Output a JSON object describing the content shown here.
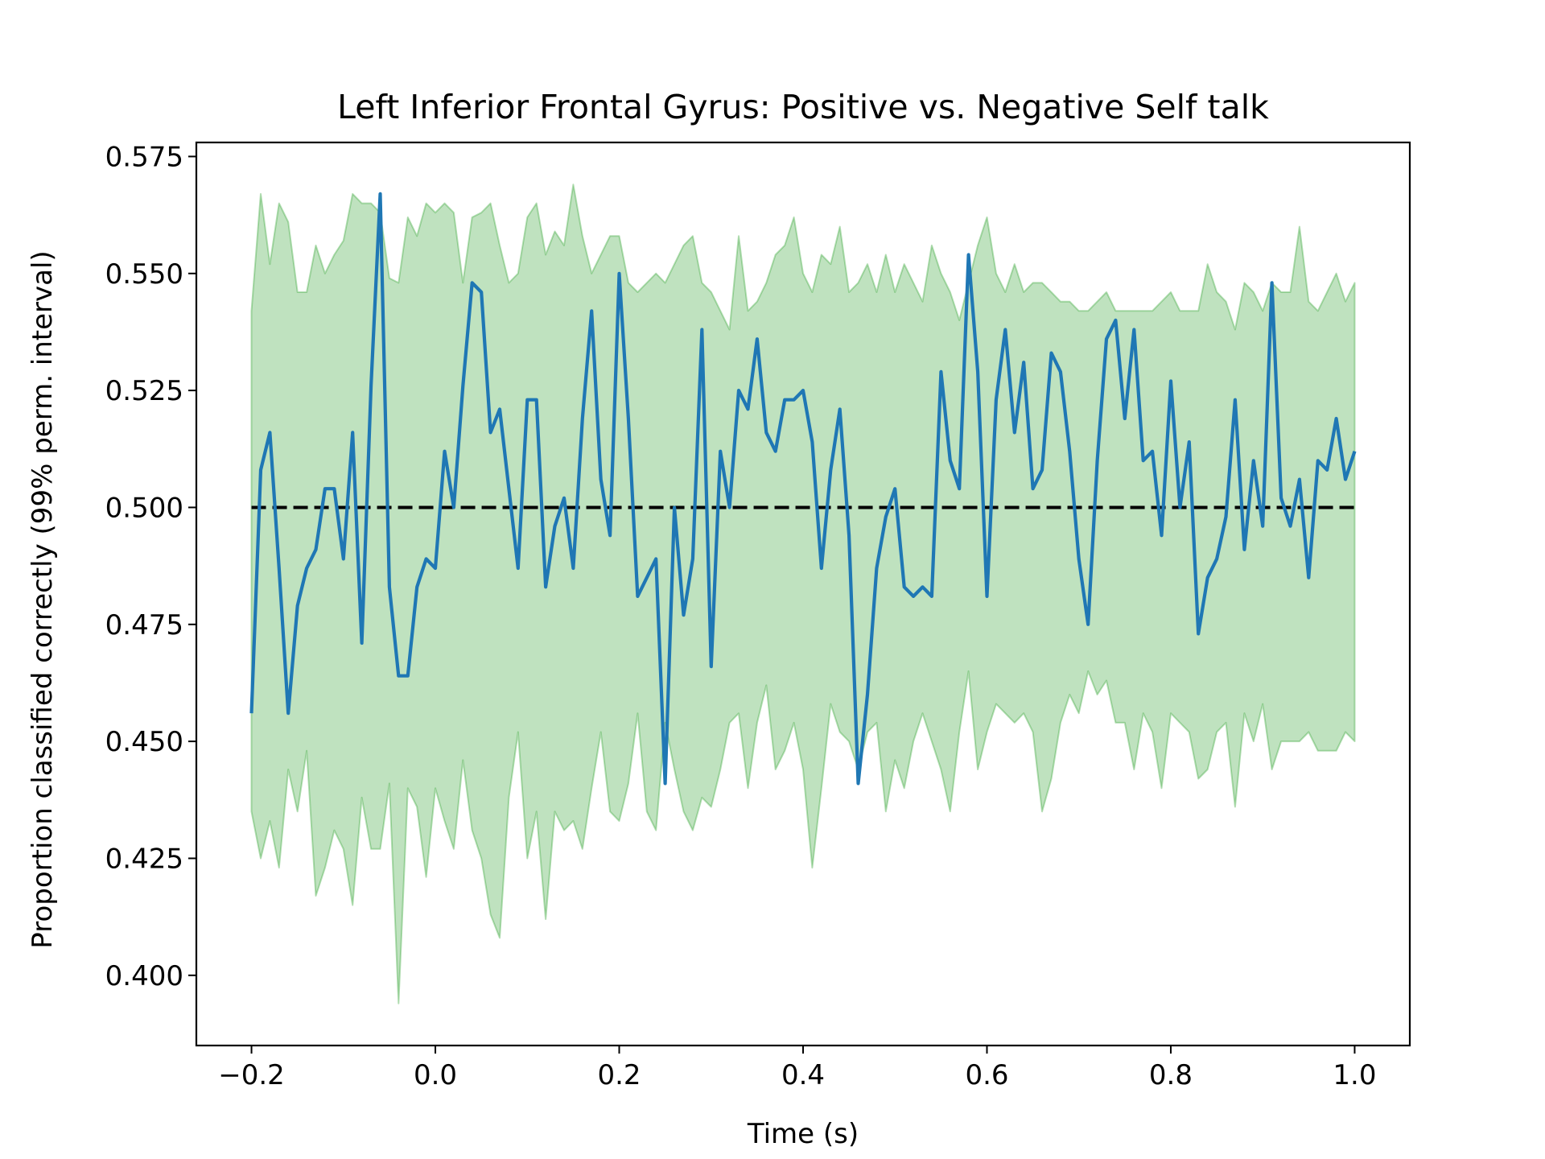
{
  "chart_data": {
    "type": "line",
    "title": "Left Inferior Frontal Gyrus: Positive vs. Negative Self talk",
    "xlabel": "Time (s)",
    "ylabel": "Proportion classified correctly (99% perm. interval)",
    "xlim": [
      -0.26,
      1.06
    ],
    "ylim": [
      0.385,
      0.578
    ],
    "xticks": [
      -0.2,
      0.0,
      0.2,
      0.4,
      0.6,
      0.8,
      1.0
    ],
    "xtick_labels": [
      "−0.2",
      "0.0",
      "0.2",
      "0.4",
      "0.6",
      "0.8",
      "1.0"
    ],
    "yticks": [
      0.4,
      0.425,
      0.45,
      0.475,
      0.5,
      0.525,
      0.55,
      0.575
    ],
    "ytick_labels": [
      "0.400",
      "0.425",
      "0.450",
      "0.475",
      "0.500",
      "0.525",
      "0.550",
      "0.575"
    ],
    "grid": false,
    "chance_level": 0.5,
    "x": [
      -0.2,
      -0.19,
      -0.18,
      -0.17,
      -0.16,
      -0.15,
      -0.14,
      -0.13,
      -0.12,
      -0.11,
      -0.1,
      -0.09,
      -0.08,
      -0.07,
      -0.06,
      -0.05,
      -0.04,
      -0.03,
      -0.02,
      -0.01,
      0.0,
      0.01,
      0.02,
      0.03,
      0.04,
      0.05,
      0.06,
      0.07,
      0.08,
      0.09,
      0.1,
      0.11,
      0.12,
      0.13,
      0.14,
      0.15,
      0.16,
      0.17,
      0.18,
      0.19,
      0.2,
      0.21,
      0.22,
      0.23,
      0.24,
      0.25,
      0.26,
      0.27,
      0.28,
      0.29,
      0.3,
      0.31,
      0.32,
      0.33,
      0.34,
      0.35,
      0.36,
      0.37,
      0.38,
      0.39,
      0.4,
      0.41,
      0.42,
      0.43,
      0.44,
      0.45,
      0.46,
      0.47,
      0.48,
      0.49,
      0.5,
      0.51,
      0.52,
      0.53,
      0.54,
      0.55,
      0.56,
      0.57,
      0.58,
      0.59,
      0.6,
      0.61,
      0.62,
      0.63,
      0.64,
      0.65,
      0.66,
      0.67,
      0.68,
      0.69,
      0.7,
      0.71,
      0.72,
      0.73,
      0.74,
      0.75,
      0.76,
      0.77,
      0.78,
      0.79,
      0.8,
      0.81,
      0.82,
      0.83,
      0.84,
      0.85,
      0.86,
      0.87,
      0.88,
      0.89,
      0.9,
      0.91,
      0.92,
      0.93,
      0.94,
      0.95,
      0.96,
      0.97,
      0.98,
      0.99,
      1.0
    ],
    "series": [
      {
        "kind": "accuracy",
        "color": "#1f77b4",
        "values": [
          0.456,
          0.508,
          0.516,
          0.487,
          0.456,
          0.479,
          0.487,
          0.491,
          0.504,
          0.504,
          0.489,
          0.516,
          0.471,
          0.526,
          0.567,
          0.483,
          0.464,
          0.464,
          0.483,
          0.489,
          0.487,
          0.512,
          0.5,
          0.526,
          0.548,
          0.546,
          0.516,
          0.521,
          0.504,
          0.487,
          0.523,
          0.523,
          0.483,
          0.496,
          0.502,
          0.487,
          0.519,
          0.542,
          0.506,
          0.494,
          0.55,
          0.519,
          0.481,
          0.485,
          0.489,
          0.441,
          0.5,
          0.477,
          0.489,
          0.538,
          0.466,
          0.512,
          0.5,
          0.525,
          0.521,
          0.536,
          0.516,
          0.512,
          0.523,
          0.523,
          0.525,
          0.514,
          0.487,
          0.508,
          0.521,
          0.494,
          0.441,
          0.46,
          0.487,
          0.498,
          0.504,
          0.483,
          0.481,
          0.483,
          0.481,
          0.529,
          0.51,
          0.504,
          0.554,
          0.529,
          0.481,
          0.523,
          0.538,
          0.516,
          0.531,
          0.504,
          0.508,
          0.533,
          0.529,
          0.512,
          0.489,
          0.475,
          0.51,
          0.536,
          0.54,
          0.519,
          0.538,
          0.51,
          0.512,
          0.494,
          0.527,
          0.5,
          0.514,
          0.473,
          0.485,
          0.489,
          0.498,
          0.523,
          0.491,
          0.51,
          0.496,
          0.548,
          0.502,
          0.496,
          0.506,
          0.485,
          0.51,
          0.508,
          0.519,
          0.506,
          0.512
        ]
      },
      {
        "kind": "interval_upper",
        "color": "#2ca02c",
        "values": [
          0.542,
          0.567,
          0.552,
          0.565,
          0.561,
          0.546,
          0.546,
          0.556,
          0.55,
          0.554,
          0.557,
          0.567,
          0.565,
          0.565,
          0.563,
          0.549,
          0.548,
          0.562,
          0.558,
          0.565,
          0.563,
          0.565,
          0.563,
          0.548,
          0.562,
          0.563,
          0.565,
          0.556,
          0.548,
          0.55,
          0.562,
          0.565,
          0.554,
          0.559,
          0.556,
          0.569,
          0.558,
          0.55,
          0.554,
          0.558,
          0.558,
          0.548,
          0.546,
          0.548,
          0.55,
          0.548,
          0.552,
          0.556,
          0.558,
          0.548,
          0.546,
          0.542,
          0.538,
          0.558,
          0.542,
          0.544,
          0.548,
          0.554,
          0.556,
          0.562,
          0.55,
          0.546,
          0.554,
          0.552,
          0.56,
          0.546,
          0.548,
          0.552,
          0.546,
          0.554,
          0.546,
          0.552,
          0.548,
          0.544,
          0.556,
          0.55,
          0.546,
          0.54,
          0.548,
          0.556,
          0.562,
          0.55,
          0.546,
          0.552,
          0.546,
          0.548,
          0.548,
          0.546,
          0.544,
          0.544,
          0.542,
          0.542,
          0.544,
          0.546,
          0.542,
          0.542,
          0.542,
          0.542,
          0.542,
          0.544,
          0.546,
          0.542,
          0.542,
          0.542,
          0.552,
          0.546,
          0.544,
          0.538,
          0.548,
          0.546,
          0.542,
          0.548,
          0.546,
          0.546,
          0.56,
          0.544,
          0.542,
          0.546,
          0.55,
          0.544,
          0.548
        ]
      },
      {
        "kind": "interval_lower",
        "color": "#2ca02c",
        "values": [
          0.435,
          0.425,
          0.433,
          0.423,
          0.444,
          0.435,
          0.448,
          0.417,
          0.423,
          0.431,
          0.427,
          0.415,
          0.438,
          0.427,
          0.427,
          0.441,
          0.394,
          0.44,
          0.436,
          0.421,
          0.44,
          0.433,
          0.427,
          0.446,
          0.431,
          0.425,
          0.413,
          0.408,
          0.438,
          0.452,
          0.425,
          0.435,
          0.412,
          0.435,
          0.431,
          0.433,
          0.427,
          0.44,
          0.452,
          0.435,
          0.433,
          0.441,
          0.456,
          0.435,
          0.431,
          0.454,
          0.444,
          0.435,
          0.431,
          0.438,
          0.436,
          0.444,
          0.454,
          0.456,
          0.44,
          0.454,
          0.462,
          0.444,
          0.448,
          0.454,
          0.444,
          0.423,
          0.44,
          0.458,
          0.452,
          0.45,
          0.444,
          0.452,
          0.454,
          0.435,
          0.446,
          0.44,
          0.45,
          0.456,
          0.45,
          0.444,
          0.435,
          0.452,
          0.465,
          0.444,
          0.452,
          0.458,
          0.456,
          0.454,
          0.456,
          0.452,
          0.435,
          0.442,
          0.454,
          0.46,
          0.456,
          0.465,
          0.46,
          0.463,
          0.454,
          0.454,
          0.444,
          0.456,
          0.452,
          0.44,
          0.456,
          0.454,
          0.452,
          0.442,
          0.444,
          0.452,
          0.454,
          0.436,
          0.456,
          0.45,
          0.458,
          0.444,
          0.45,
          0.45,
          0.45,
          0.452,
          0.448,
          0.448,
          0.448,
          0.452,
          0.45
        ]
      }
    ]
  }
}
